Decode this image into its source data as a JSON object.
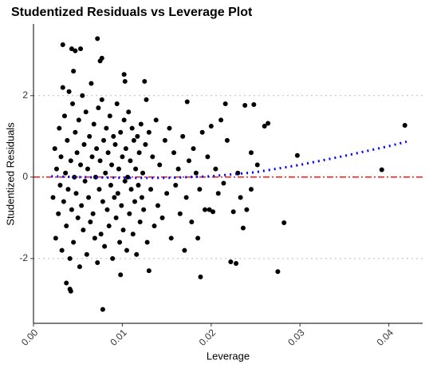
{
  "chart_data": {
    "type": "scatter",
    "title": "Studentized Residuals vs Leverage Plot",
    "x_label": "Leverage",
    "y_label": "Studentized Residuals",
    "xlim": [
      0,
      0.0438
    ],
    "ylim": [
      -3.59,
      3.76
    ],
    "xticks": [
      {
        "value": 0,
        "label": "0.00"
      },
      {
        "value": 0.01,
        "label": "0.01"
      },
      {
        "value": 0.02,
        "label": "0.02"
      },
      {
        "value": 0.03,
        "label": "0.03"
      },
      {
        "value": 0.04,
        "label": "0.04"
      }
    ],
    "yticks": [
      -2,
      0,
      2
    ],
    "series": [
      {
        "color": "#000000",
        "x": [
          0.0033,
          0.0072,
          0.0078,
          0.0418,
          0.0392,
          0.0297,
          0.0282,
          0.0275,
          0.0188,
          0.0222,
          0.0228,
          0.0248,
          0.0238,
          0.0216,
          0.0173,
          0.0127,
          0.0102,
          0.0125,
          0.0103,
          0.0077,
          0.0075,
          0.0053,
          0.0047,
          0.0043,
          0.0045,
          0.0037,
          0.0041,
          0.0042,
          0.0098,
          0.013,
          0.0264,
          0.026,
          0.0245,
          0.0252,
          0.024,
          0.0225,
          0.0236,
          0.0214,
          0.0202,
          0.0198,
          0.0185,
          0.017,
          0.02,
          0.0211,
          0.0022,
          0.0024,
          0.0025,
          0.0026,
          0.0028,
          0.0029,
          0.003,
          0.0031,
          0.0032,
          0.0033,
          0.0034,
          0.0035,
          0.0036,
          0.0037,
          0.0038,
          0.0039,
          0.004,
          0.0041,
          0.0042,
          0.0043,
          0.0044,
          0.0045,
          0.0046,
          0.0047,
          0.0048,
          0.0049,
          0.005,
          0.0051,
          0.0052,
          0.0053,
          0.0054,
          0.0055,
          0.0056,
          0.0057,
          0.0058,
          0.0059,
          0.006,
          0.0061,
          0.0062,
          0.0063,
          0.0064,
          0.0065,
          0.0066,
          0.0067,
          0.0068,
          0.0069,
          0.007,
          0.0071,
          0.0072,
          0.0073,
          0.0074,
          0.0075,
          0.0076,
          0.0077,
          0.0078,
          0.0079,
          0.008,
          0.0081,
          0.0082,
          0.0083,
          0.0084,
          0.0085,
          0.0086,
          0.0087,
          0.0088,
          0.0089,
          0.009,
          0.0091,
          0.0092,
          0.0093,
          0.0094,
          0.0095,
          0.0096,
          0.0097,
          0.0098,
          0.0099,
          0.01,
          0.0101,
          0.0102,
          0.0103,
          0.0104,
          0.0105,
          0.0106,
          0.0107,
          0.0108,
          0.0109,
          0.011,
          0.0111,
          0.0112,
          0.0113,
          0.0114,
          0.0115,
          0.0116,
          0.0117,
          0.0118,
          0.0119,
          0.012,
          0.0121,
          0.0122,
          0.0123,
          0.0124,
          0.0126,
          0.0128,
          0.013,
          0.0132,
          0.0134,
          0.0136,
          0.0138,
          0.014,
          0.0142,
          0.0145,
          0.0148,
          0.015,
          0.0153,
          0.0155,
          0.0158,
          0.016,
          0.0163,
          0.0165,
          0.0168,
          0.0172,
          0.0175,
          0.0178,
          0.018,
          0.0183,
          0.0187,
          0.019,
          0.0193,
          0.0196,
          0.0205,
          0.0208,
          0.0218,
          0.023,
          0.0233,
          0.0245
        ],
        "values": [
          3.25,
          3.4,
          -3.25,
          1.27,
          0.18,
          0.53,
          -1.12,
          -2.32,
          -2.45,
          -2.08,
          -2.12,
          1.78,
          1.76,
          1.8,
          1.85,
          1.9,
          2.52,
          2.35,
          2.35,
          2.92,
          2.85,
          3.15,
          3.1,
          3.15,
          2.6,
          -2.6,
          -2.75,
          -2.8,
          -2.4,
          -2.3,
          1.32,
          1.25,
          0.6,
          0.3,
          -0.8,
          -0.85,
          -1.25,
          -0.15,
          -0.85,
          -0.8,
          -1.5,
          -1.8,
          1.25,
          1.4,
          -0.5,
          0.7,
          -1.5,
          0.2,
          -0.9,
          1.2,
          -0.2,
          0.5,
          -1.8,
          2.2,
          -0.6,
          1.5,
          0.1,
          -1.2,
          0.9,
          -0.3,
          2.1,
          -2.0,
          0.4,
          -0.8,
          1.8,
          -1.6,
          0.0,
          1.1,
          -0.4,
          0.6,
          -1.0,
          1.4,
          -2.2,
          0.3,
          -0.7,
          2.0,
          -1.3,
          0.8,
          -0.1,
          1.6,
          -1.9,
          0.2,
          -0.5,
          1.0,
          -1.1,
          2.3,
          0.5,
          -0.9,
          1.3,
          -1.5,
          0.0,
          0.7,
          -2.1,
          1.7,
          -0.3,
          0.4,
          -1.4,
          1.9,
          -0.6,
          0.9,
          -1.7,
          0.1,
          1.2,
          -0.8,
          0.6,
          -1.2,
          1.5,
          -0.2,
          0.3,
          -2.0,
          1.0,
          -0.5,
          0.8,
          -1.0,
          1.8,
          -0.4,
          0.2,
          -1.6,
          1.1,
          -0.7,
          0.5,
          -1.3,
          1.4,
          -0.1,
          0.7,
          -1.8,
          0.0,
          1.6,
          -0.9,
          0.4,
          -0.3,
          1.2,
          -1.4,
          0.9,
          -0.6,
          0.2,
          -1.9,
          1.0,
          -0.2,
          0.6,
          -1.1,
          1.3,
          -0.5,
          0.1,
          -0.8,
          0.8,
          -1.6,
          1.1,
          -0.3,
          0.5,
          -1.2,
          1.4,
          -0.7,
          0.3,
          -1.0,
          0.9,
          -0.4,
          1.2,
          -1.5,
          0.6,
          -0.2,
          0.2,
          -0.9,
          1.0,
          -0.5,
          0.4,
          -1.1,
          0.7,
          0.1,
          -0.3,
          1.1,
          -0.8,
          0.5,
          0.2,
          -0.4,
          0.9,
          0.1,
          -0.5,
          -0.3
        ]
      }
    ],
    "smooth": {
      "color": "#0000ff",
      "x": [
        0.002,
        0.005,
        0.01,
        0.015,
        0.02,
        0.025,
        0.03,
        0.035,
        0.04,
        0.042
      ],
      "values": [
        0.02,
        0,
        -0.02,
        -0.02,
        0.02,
        0.12,
        0.3,
        0.52,
        0.76,
        0.87
      ]
    },
    "hlines": [
      {
        "value": 0,
        "color": "#ff0000",
        "style": "dashed"
      },
      {
        "value": 2,
        "color": "#bbbbbb",
        "style": "dotted"
      },
      {
        "value": -2,
        "color": "#bbbbbb",
        "style": "dotted"
      }
    ]
  }
}
